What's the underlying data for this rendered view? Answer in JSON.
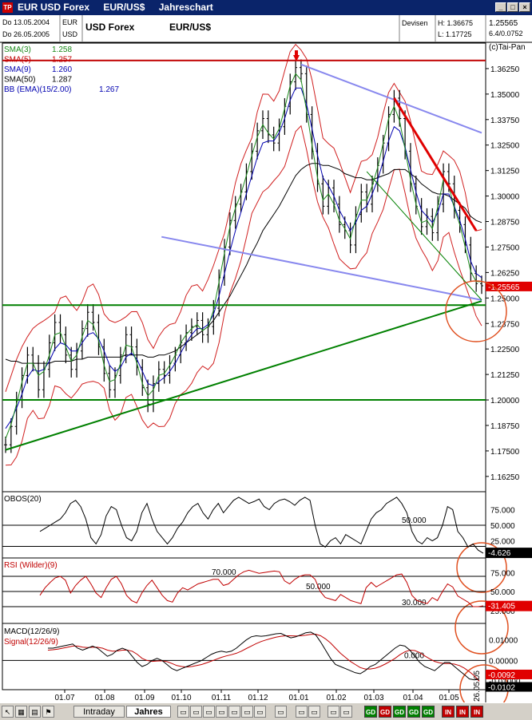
{
  "window": {
    "title_parts": [
      "EUR USD Forex",
      "EUR/US$",
      "Jahreschart"
    ],
    "buttons": [
      "_",
      "□",
      "×"
    ]
  },
  "header": {
    "date_from": "Do 13.05.2004",
    "date_to": "Do 26.05.2005",
    "cur1": "EUR",
    "cur2": "USD",
    "instrument": "USD Forex",
    "symbol": "EUR/US$",
    "source": "Devisen",
    "high": "H: 1.36675",
    "low": "L: 1.17725",
    "last": "1.25565",
    "change": "6.4/0.0752",
    "copyright": "(c)Tai-Pan"
  },
  "legend": [
    {
      "name": "SMA(3)",
      "value": "1.258",
      "color": "#1a8a1a"
    },
    {
      "name": "SMA(5)",
      "value": "1.257",
      "color": "#c00000"
    },
    {
      "name": "SMA(9)",
      "value": "1.260",
      "color": "#0000b0"
    },
    {
      "name": "SMA(50)",
      "value": "1.287",
      "color": "#000000"
    },
    {
      "name": "BB (EMA)(15/2.00)",
      "value": "1.267",
      "color": "#0000b0"
    }
  ],
  "chart_data": {
    "type": "line",
    "ylim": [
      1.155,
      1.375
    ],
    "yticks": [
      "1.36250",
      "1.35000",
      "1.33750",
      "1.32500",
      "1.31250",
      "1.30000",
      "1.28750",
      "1.27500",
      "1.26250",
      "1.25000",
      "1.23750",
      "1.22500",
      "1.21250",
      "1.20000",
      "1.18750",
      "1.17500",
      "1.16250"
    ],
    "xticks": [
      "01.07",
      "01.08",
      "01.09",
      "01.10",
      "01.11",
      "01.12",
      "01.01",
      "01.02",
      "01.03",
      "01.04",
      "01.05",
      "26.05.05"
    ],
    "last_price_label": "1.25565",
    "series": [
      {
        "name": "SMA(3)",
        "color": "#1a8a1a"
      },
      {
        "name": "SMA(5)",
        "color": "#c00000"
      },
      {
        "name": "SMA(9)",
        "color": "#0000b0"
      },
      {
        "name": "SMA(50)",
        "color": "#000000"
      }
    ],
    "price": [
      1.178,
      1.187,
      1.2,
      1.212,
      1.222,
      1.218,
      1.205,
      1.215,
      1.228,
      1.238,
      1.232,
      1.222,
      1.215,
      1.224,
      1.235,
      1.243,
      1.238,
      1.226,
      1.213,
      1.205,
      1.212,
      1.222,
      1.232,
      1.226,
      1.216,
      1.206,
      1.198,
      1.208,
      1.215,
      1.212,
      1.218,
      1.222,
      1.228,
      1.233,
      1.236,
      1.239,
      1.232,
      1.236,
      1.245,
      1.26,
      1.275,
      1.288,
      1.296,
      1.302,
      1.312,
      1.322,
      1.332,
      1.338,
      1.33,
      1.326,
      1.334,
      1.344,
      1.356,
      1.363,
      1.36,
      1.34,
      1.322,
      1.306,
      1.295,
      1.304,
      1.296,
      1.286,
      1.283,
      1.276,
      1.291,
      1.302,
      1.296,
      1.306,
      1.315,
      1.326,
      1.34,
      1.348,
      1.338,
      1.322,
      1.306,
      1.295,
      1.285,
      1.29,
      1.282,
      1.296,
      1.312,
      1.306,
      1.293,
      1.286,
      1.276,
      1.262,
      1.257,
      1.256
    ],
    "sma3": [
      1.181,
      1.188,
      1.198,
      1.209,
      1.218,
      1.218,
      1.212,
      1.214,
      1.222,
      1.232,
      1.233,
      1.226,
      1.219,
      1.222,
      1.231,
      1.239,
      1.237,
      1.229,
      1.217,
      1.209,
      1.21,
      1.218,
      1.227,
      1.226,
      1.218,
      1.208,
      1.202,
      1.205,
      1.212,
      1.213,
      1.217,
      1.222,
      1.228,
      1.232,
      1.235,
      1.237,
      1.234,
      1.236,
      1.244,
      1.258,
      1.272,
      1.285,
      1.294,
      1.301,
      1.31,
      1.32,
      1.329,
      1.335,
      1.331,
      1.328,
      1.333,
      1.343,
      1.354,
      1.36,
      1.357,
      1.342,
      1.325,
      1.309,
      1.298,
      1.301,
      1.296,
      1.288,
      1.284,
      1.279,
      1.289,
      1.298,
      1.298,
      1.305,
      1.314,
      1.326,
      1.338,
      1.344,
      1.337,
      1.323,
      1.308,
      1.296,
      1.287,
      1.288,
      1.284,
      1.295,
      1.308,
      1.305,
      1.294,
      1.286,
      1.275,
      1.263,
      1.258,
      1.258
    ],
    "sma9": [
      1.186,
      1.19,
      1.196,
      1.203,
      1.211,
      1.215,
      1.214,
      1.215,
      1.219,
      1.225,
      1.228,
      1.227,
      1.224,
      1.224,
      1.228,
      1.232,
      1.233,
      1.23,
      1.224,
      1.217,
      1.214,
      1.216,
      1.221,
      1.223,
      1.22,
      1.214,
      1.208,
      1.207,
      1.209,
      1.211,
      1.214,
      1.218,
      1.223,
      1.228,
      1.232,
      1.235,
      1.235,
      1.237,
      1.242,
      1.251,
      1.262,
      1.273,
      1.283,
      1.292,
      1.301,
      1.31,
      1.319,
      1.326,
      1.327,
      1.327,
      1.331,
      1.338,
      1.347,
      1.353,
      1.353,
      1.345,
      1.333,
      1.32,
      1.309,
      1.305,
      1.3,
      1.293,
      1.288,
      1.283,
      1.287,
      1.293,
      1.295,
      1.301,
      1.308,
      1.317,
      1.327,
      1.334,
      1.332,
      1.324,
      1.313,
      1.302,
      1.293,
      1.29,
      1.287,
      1.292,
      1.301,
      1.301,
      1.295,
      1.288,
      1.279,
      1.268,
      1.262,
      1.26
    ],
    "sma50": [
      1.22,
      1.219,
      1.219,
      1.218,
      1.218,
      1.218,
      1.218,
      1.218,
      1.218,
      1.219,
      1.219,
      1.219,
      1.219,
      1.22,
      1.22,
      1.221,
      1.221,
      1.221,
      1.221,
      1.221,
      1.221,
      1.221,
      1.222,
      1.222,
      1.222,
      1.222,
      1.221,
      1.221,
      1.222,
      1.222,
      1.223,
      1.224,
      1.226,
      1.228,
      1.23,
      1.232,
      1.234,
      1.236,
      1.239,
      1.243,
      1.247,
      1.251,
      1.256,
      1.261,
      1.266,
      1.272,
      1.277,
      1.283,
      1.287,
      1.291,
      1.295,
      1.3,
      1.305,
      1.31,
      1.313,
      1.315,
      1.316,
      1.316,
      1.315,
      1.315,
      1.314,
      1.313,
      1.311,
      1.31,
      1.309,
      1.309,
      1.308,
      1.308,
      1.309,
      1.31,
      1.311,
      1.313,
      1.313,
      1.313,
      1.311,
      1.309,
      1.306,
      1.304,
      1.302,
      1.301,
      1.301,
      1.3,
      1.298,
      1.296,
      1.294,
      1.29,
      1.288,
      1.287
    ],
    "bb_width": 0.018,
    "trendlines": [
      {
        "color": "#008000",
        "from": [
          0,
          1.1755
        ],
        "to": [
          87,
          1.2485
        ]
      },
      {
        "color": "#008000",
        "from": [
          0,
          1.2465
        ],
        "to": [
          87,
          1.2465
        ],
        "horizontal": true
      },
      {
        "color": "#008000",
        "from": [
          0,
          1.2
        ],
        "to": [
          87,
          1.2
        ],
        "horizontal": true
      },
      {
        "color": "#c00000",
        "from": [
          0,
          1.3665
        ],
        "to": [
          87,
          1.3665
        ],
        "horizontal": true
      },
      {
        "color": "#8888ee",
        "from": [
          54,
          1.3645
        ],
        "to": [
          87,
          1.331
        ]
      },
      {
        "color": "#8888ee",
        "from": [
          28.5,
          1.28
        ],
        "to": [
          87,
          1.249
        ]
      },
      {
        "color": "#e00000",
        "from": [
          71,
          1.348
        ],
        "to": [
          86,
          1.283
        ]
      }
    ]
  },
  "indicators": {
    "obos": {
      "label": "OBOS(20)",
      "ticks": [
        "75.000",
        "50.000",
        "25.000"
      ],
      "level_label": "50.000",
      "value": "4.626",
      "values": [
        40,
        45,
        50,
        55,
        60,
        70,
        85,
        90,
        80,
        60,
        30,
        20,
        35,
        65,
        80,
        75,
        50,
        30,
        25,
        40,
        70,
        85,
        60,
        40,
        30,
        20,
        30,
        45,
        55,
        70,
        80,
        85,
        70,
        60,
        75,
        85,
        70,
        80,
        90,
        95,
        90,
        85,
        88,
        92,
        80,
        75,
        85,
        90,
        92,
        88,
        82,
        90,
        95,
        90,
        50,
        20,
        15,
        25,
        30,
        20,
        35,
        30,
        25,
        20,
        40,
        60,
        70,
        75,
        85,
        90,
        95,
        85,
        70,
        40,
        25,
        20,
        30,
        25,
        30,
        50,
        80,
        75,
        40,
        30,
        15,
        20,
        10,
        5
      ]
    },
    "rsi": {
      "label": "RSI (Wilder)(9)",
      "ticks": [
        "75.000",
        "50.000",
        "25.000"
      ],
      "levels": [
        "70.000",
        "50.000",
        "30.000"
      ],
      "value": "31.405",
      "values": [
        45,
        55,
        62,
        68,
        70,
        65,
        48,
        58,
        65,
        70,
        60,
        48,
        42,
        55,
        66,
        70,
        60,
        45,
        38,
        35,
        48,
        58,
        65,
        55,
        45,
        38,
        36,
        48,
        55,
        52,
        56,
        60,
        62,
        64,
        66,
        66,
        58,
        60,
        66,
        72,
        76,
        78,
        76,
        74,
        75,
        76,
        77,
        76,
        64,
        60,
        66,
        70,
        72,
        72,
        66,
        50,
        42,
        40,
        38,
        46,
        42,
        38,
        36,
        34,
        55,
        62,
        56,
        60,
        64,
        68,
        72,
        73,
        62,
        45,
        38,
        36,
        34,
        42,
        38,
        50,
        60,
        56,
        44,
        40,
        36,
        30,
        30,
        31
      ]
    },
    "macd": {
      "label": "MACD(12/26/9)",
      "signal_label": "Signal(12/26/9)",
      "ticks": [
        "0.01000",
        "0.00000",
        "-0.01000"
      ],
      "level_label": "0.000",
      "value": "-0.0092",
      "signal_value": "-0.0102",
      "macd_values": [
        0.006,
        0.006,
        0.0065,
        0.007,
        0.0075,
        0.008,
        0.006,
        0.005,
        0.006,
        0.007,
        0.006,
        0.004,
        0.002,
        0.003,
        0.005,
        0.006,
        0.005,
        0.002,
        -0.001,
        -0.003,
        -0.002,
        0.0,
        0.001,
        0.0,
        -0.002,
        -0.004,
        -0.005,
        -0.004,
        -0.003,
        -0.002,
        -0.001,
        0.0,
        0.0015,
        0.003,
        0.004,
        0.0045,
        0.004,
        0.0045,
        0.006,
        0.008,
        0.01,
        0.0115,
        0.012,
        0.0118,
        0.012,
        0.0125,
        0.013,
        0.0132,
        0.012,
        0.011,
        0.0115,
        0.0125,
        0.0135,
        0.0138,
        0.0125,
        0.009,
        0.005,
        0.001,
        -0.002,
        -0.003,
        -0.004,
        -0.005,
        -0.006,
        -0.0065,
        -0.005,
        -0.003,
        -0.002,
        0.0,
        0.002,
        0.004,
        0.006,
        0.0075,
        0.007,
        0.005,
        0.002,
        -0.001,
        -0.003,
        -0.004,
        -0.005,
        -0.003,
        -0.001,
        -0.001,
        -0.003,
        -0.005,
        -0.007,
        -0.009,
        -0.0095,
        -0.0092
      ],
      "signal_values": [
        0.005,
        0.0052,
        0.0055,
        0.006,
        0.0065,
        0.007,
        0.007,
        0.0065,
        0.0063,
        0.0064,
        0.0064,
        0.006,
        0.005,
        0.0045,
        0.0046,
        0.005,
        0.005,
        0.0045,
        0.003,
        0.001,
        0.0,
        -0.0005,
        -0.0003,
        -0.0002,
        -0.0006,
        -0.0015,
        -0.0025,
        -0.003,
        -0.0032,
        -0.003,
        -0.0025,
        -0.002,
        -0.0012,
        -0.0003,
        0.0006,
        0.0015,
        0.0022,
        0.0028,
        0.0035,
        0.0045,
        0.0058,
        0.007,
        0.0082,
        0.0092,
        0.01,
        0.0107,
        0.0113,
        0.0118,
        0.012,
        0.012,
        0.0119,
        0.012,
        0.0123,
        0.0127,
        0.0128,
        0.012,
        0.0105,
        0.0085,
        0.006,
        0.0035,
        0.0015,
        -0.0005,
        -0.002,
        -0.0035,
        -0.0042,
        -0.0042,
        -0.0038,
        -0.003,
        -0.0018,
        -0.0005,
        0.001,
        0.0028,
        0.0042,
        0.005,
        0.0048,
        0.0038,
        0.0022,
        0.0008,
        -0.0005,
        -0.0012,
        -0.0015,
        -0.0015,
        -0.0018,
        -0.0025,
        -0.0038,
        -0.0055,
        -0.0075,
        -0.0102
      ]
    }
  },
  "taskbar": {
    "tabs": [
      {
        "label": "Intraday",
        "active": false
      },
      {
        "label": "Jahres",
        "active": true
      }
    ],
    "buttons": [
      {
        "label": "GD",
        "color": "#008000"
      },
      {
        "label": "GD",
        "color": "#c00000"
      },
      {
        "label": "GD",
        "color": "#008000"
      },
      {
        "label": "GD",
        "color": "#008000"
      },
      {
        "label": "GD",
        "color": "#008000"
      },
      {
        "label": "IN",
        "color": "#c00000"
      },
      {
        "label": "IN",
        "color": "#c00000"
      },
      {
        "label": "IN",
        "color": "#c00000"
      }
    ]
  }
}
